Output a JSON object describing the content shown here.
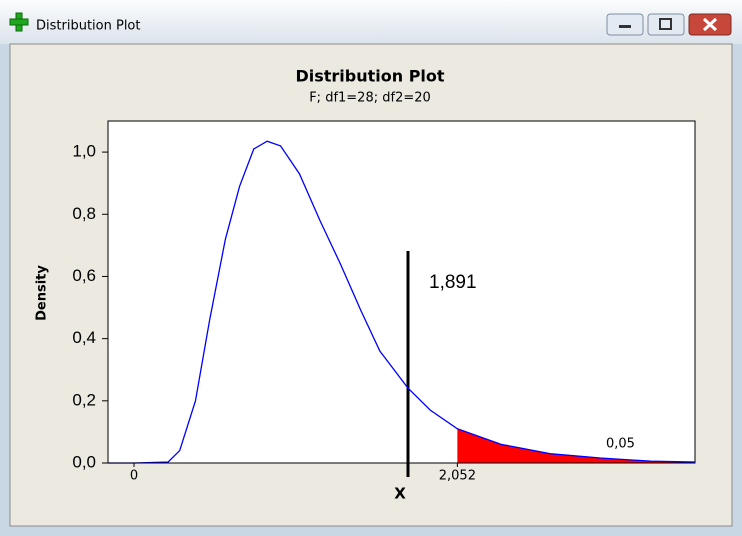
{
  "window": {
    "title": "Distribution Plot"
  },
  "chart_data": {
    "type": "line",
    "title": "Distribution Plot",
    "subtitle": "F; df1=28; df2=20",
    "x_label": "X",
    "y_label": "Density",
    "x": [
      -0.165,
      0,
      0.216,
      0.29,
      0.39,
      0.48,
      0.58,
      0.67,
      0.76,
      0.845,
      0.93,
      1.05,
      1.18,
      1.31,
      1.44,
      1.56,
      1.74,
      1.88,
      2.052,
      2.33,
      2.64,
      2.96,
      3.28,
      3.56
    ],
    "series": [
      {
        "name": "F; df1=28; df2=20",
        "color": "#0000ff",
        "values": [
          0,
          0,
          0.003,
          0.04,
          0.2,
          0.46,
          0.72,
          0.89,
          1.01,
          1.035,
          1.02,
          0.93,
          0.78,
          0.64,
          0.49,
          0.36,
          0.24,
          0.17,
          0.11,
          0.06,
          0.03,
          0.016,
          0.006,
          0.003
        ]
      }
    ],
    "xlim": [
      -0.165,
      3.56
    ],
    "ylim": [
      0,
      1.1
    ],
    "xticks": [
      0,
      {
        "value": 2.052,
        "label": "2,052"
      }
    ],
    "yticks": [
      {
        "value": 0,
        "label": "0,0"
      },
      {
        "value": 0.2,
        "label": "0,2"
      },
      {
        "value": 0.4,
        "label": "0,4"
      },
      {
        "value": 0.6,
        "label": "0,6"
      },
      {
        "value": 0.8,
        "label": "0,8"
      },
      {
        "value": 1.0,
        "label": "1,0"
      }
    ],
    "shaded_area": {
      "from": 2.052,
      "color": "#ff0000",
      "probability": {
        "value": 0.05,
        "label": "0,05"
      }
    },
    "annotations": [
      {
        "text": "1,891"
      }
    ]
  }
}
